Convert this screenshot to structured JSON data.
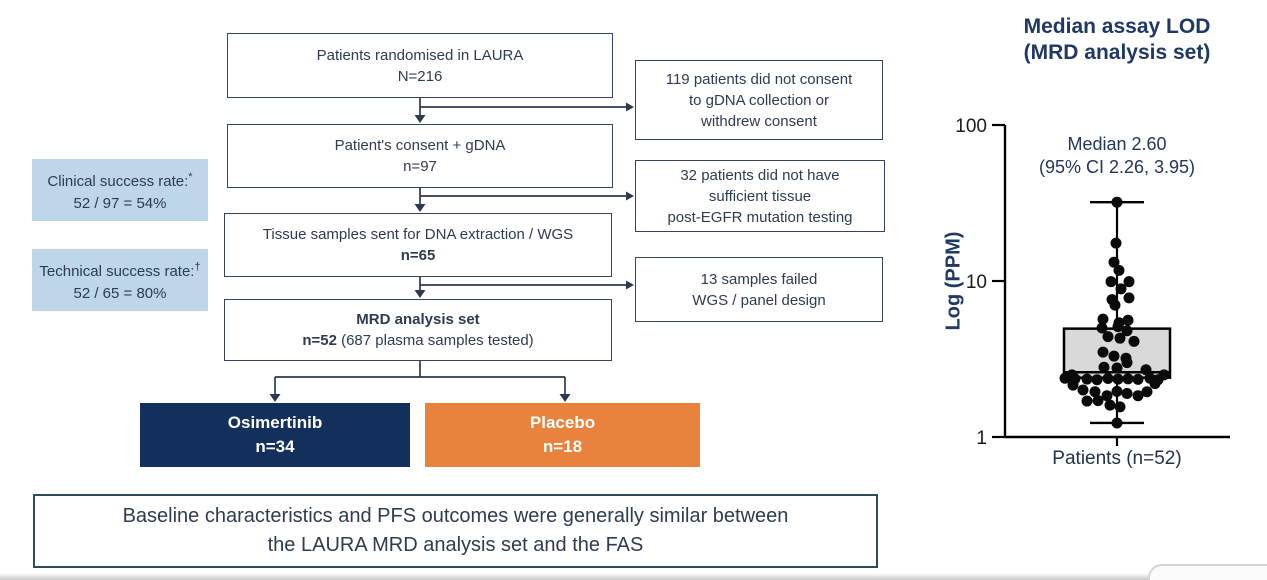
{
  "flow": {
    "box1": {
      "line1": "Patients randomised in LAURA",
      "line2": "N=216"
    },
    "box2": {
      "line1": "Patient's consent + gDNA",
      "line2": "n=97"
    },
    "box3": {
      "line1": "Tissue samples sent for DNA extraction / WGS",
      "line2_bold": "n=65"
    },
    "box4": {
      "line1_bold": "MRD analysis set",
      "line2_bold": "n=52",
      "line2_rest": " (687 plasma samples tested)"
    },
    "side1": {
      "lines": [
        "119 patients did not consent",
        "to gDNA collection or",
        "withdrew consent"
      ]
    },
    "side2": {
      "lines": [
        "32 patients did not have",
        "sufficient tissue",
        "post-EGFR mutation testing"
      ]
    },
    "side3": {
      "lines": [
        "13 samples failed",
        "WGS / panel design"
      ]
    },
    "note1": {
      "label": "Clinical success rate:",
      "sup": "*",
      "value": "52 / 97 = 54%"
    },
    "note2": {
      "label": "Technical success rate:",
      "sup": "†",
      "value": "52 / 65 = 80%"
    },
    "arm1": {
      "line1": "Osimertinib",
      "line2": "n=34"
    },
    "arm2": {
      "line1": "Placebo",
      "line2": "n=18"
    }
  },
  "banner": {
    "line1": "Baseline characteristics and PFS outcomes were generally similar between",
    "line2": "the LAURA MRD analysis set and the FAS"
  },
  "chart_data": {
    "type": "box-scatter",
    "title_line1": "Median assay LOD",
    "title_line2": "(MRD analysis set)",
    "annotation_line1": "Median 2.60",
    "annotation_line2": "(95% CI 2.26, 3.95)",
    "ylabel": "Log (PPM)",
    "xlabel": "Patients (n=52)",
    "y_scale": "log10",
    "y_ticks": [
      1,
      10,
      100
    ],
    "ylim": [
      1,
      100
    ],
    "n": 52,
    "median": 2.6,
    "ci95": [
      2.26,
      3.95
    ],
    "box": {
      "q1": 2.4,
      "median": 2.6,
      "q3": 4.95,
      "whisker_low": 1.23,
      "whisker_high": 32
    },
    "points": [
      [
        32,
        0
      ],
      [
        17.5,
        -1
      ],
      [
        13.2,
        -3
      ],
      [
        11.7,
        2
      ],
      [
        9.9,
        -6
      ],
      [
        9.9,
        12
      ],
      [
        8.9,
        4
      ],
      [
        7.8,
        12
      ],
      [
        7.6,
        -5
      ],
      [
        7.0,
        -2
      ],
      [
        5.7,
        -14
      ],
      [
        5.6,
        11
      ],
      [
        5.4,
        2
      ],
      [
        5.0,
        -15
      ],
      [
        5.1,
        1
      ],
      [
        4.8,
        10
      ],
      [
        4.4,
        -9
      ],
      [
        4.3,
        3
      ],
      [
        4.1,
        17
      ],
      [
        3.5,
        -14
      ],
      [
        3.3,
        -3
      ],
      [
        3.2,
        9
      ],
      [
        3.0,
        10
      ],
      [
        2.8,
        -13
      ],
      [
        2.77,
        0
      ],
      [
        2.7,
        29
      ],
      [
        2.5,
        -45
      ],
      [
        2.5,
        47
      ],
      [
        2.38,
        -52
      ],
      [
        2.36,
        -42
      ],
      [
        2.35,
        -30
      ],
      [
        2.33,
        -20
      ],
      [
        2.37,
        -9
      ],
      [
        2.35,
        1
      ],
      [
        2.36,
        11
      ],
      [
        2.34,
        21
      ],
      [
        2.38,
        33
      ],
      [
        2.33,
        41
      ],
      [
        2.2,
        38
      ],
      [
        2.15,
        -44
      ],
      [
        2.0,
        -34
      ],
      [
        1.95,
        -22
      ],
      [
        1.84,
        -10
      ],
      [
        1.96,
        0
      ],
      [
        1.9,
        10
      ],
      [
        1.84,
        21
      ],
      [
        1.95,
        30
      ],
      [
        1.7,
        -30
      ],
      [
        1.71,
        -19
      ],
      [
        1.6,
        -7
      ],
      [
        1.56,
        3
      ],
      [
        1.23,
        0
      ]
    ]
  },
  "colors": {
    "navy_box": "#12305b",
    "orange_box": "#e8823c",
    "note_bg": "#bdd6e8",
    "text_navy": "#2e3b50",
    "title_navy": "#1f3864",
    "box_fill": "#d9d9d9",
    "dot": "#0a0a0a"
  }
}
